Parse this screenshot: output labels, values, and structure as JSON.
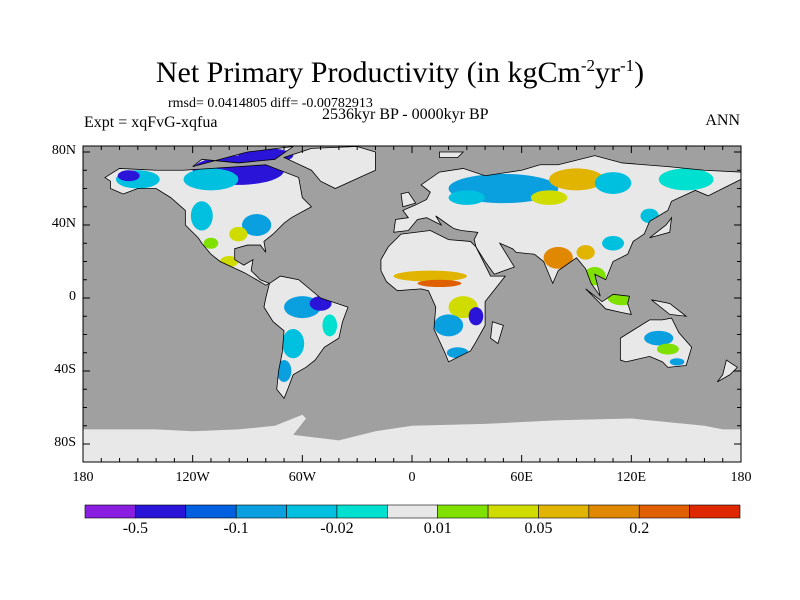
{
  "title": {
    "main": "Net Primary Productivity (in kgCm",
    "sup1": "-2",
    "mid": "yr",
    "sup2": "-1",
    "end": ")"
  },
  "stats": {
    "rmsd_label": "rmsd= 0.0414805 diff= -0.00782913"
  },
  "period": "2536kyr BP - 0000kyr BP",
  "experiment": "Expt = xqFvG-xqfua",
  "season": "ANN",
  "chart_data": {
    "type": "heatmap",
    "title": "Net Primary Productivity (in kgCm-2yr-1)",
    "lat_ticks": [
      "80N",
      "40N",
      "0",
      "40S",
      "80S"
    ],
    "lat_values": [
      80,
      40,
      0,
      -40,
      -80
    ],
    "lon_ticks": [
      "180",
      "120W",
      "60W",
      "0",
      "60E",
      "120E",
      "180"
    ],
    "lon_values": [
      -180,
      -120,
      -60,
      0,
      60,
      120,
      180
    ],
    "colorbar": {
      "colors": [
        "#8a1ee0",
        "#2a14d8",
        "#0060e0",
        "#0aa0e0",
        "#00c0e0",
        "#00e0d0",
        "#e8e8e8",
        "#80e000",
        "#d0dc00",
        "#e0b400",
        "#e08800",
        "#e06000",
        "#e02800"
      ],
      "labels": [
        "-0.5",
        "-0.1",
        "-0.02",
        "0.01",
        "0.05",
        "0.2"
      ],
      "label_boundaries": [
        1,
        3,
        5,
        7,
        9,
        11
      ]
    },
    "ocean_color": "#a0a0a0",
    "land_missing_color": "#e8e8e8"
  }
}
